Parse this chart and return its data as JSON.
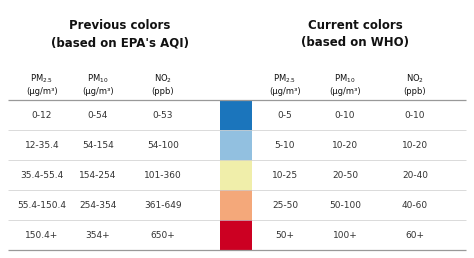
{
  "title_left": "Previous colors\n(based on EPA's AQI)",
  "title_right": "Current colors\n(based on WHO)",
  "bg_color": "#ffffff",
  "row_colors": [
    "#1b75bc",
    "#92c0e0",
    "#f0eeaa",
    "#f4a87a",
    "#cc0022"
  ],
  "epa_rows": [
    [
      "0-12",
      "0-54",
      "0-53"
    ],
    [
      "12-35.4",
      "54-154",
      "54-100"
    ],
    [
      "35.4-55.4",
      "154-254",
      "101-360"
    ],
    [
      "55.4-150.4",
      "254-354",
      "361-649"
    ],
    [
      "150.4+",
      "354+",
      "650+"
    ]
  ],
  "who_rows": [
    [
      "0-5",
      "0-10",
      "0-10"
    ],
    [
      "5-10",
      "10-20",
      "10-20"
    ],
    [
      "10-25",
      "20-50",
      "20-40"
    ],
    [
      "25-50",
      "50-100",
      "40-60"
    ],
    [
      "50+",
      "100+",
      "60+"
    ]
  ],
  "text_color": "#333333",
  "title_color": "#111111",
  "line_color_strong": "#999999",
  "line_color_weak": "#cccccc",
  "title_fontsize": 8.5,
  "header_fontsize": 6.0,
  "data_fontsize": 6.5,
  "fig_width": 4.74,
  "fig_height": 2.58,
  "dpi": 100
}
